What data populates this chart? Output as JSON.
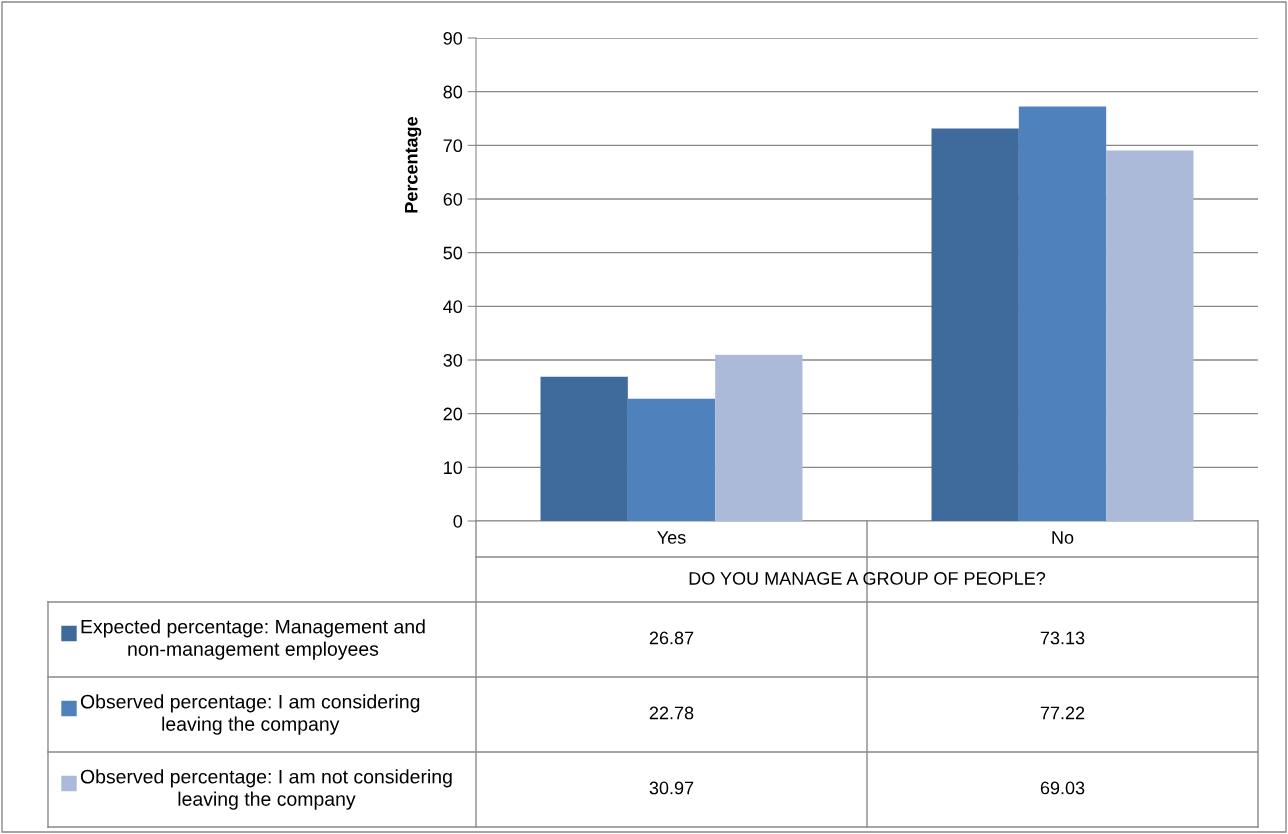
{
  "chart_data": {
    "type": "bar",
    "xlabel": "DO YOU MANAGE A GROUP OF PEOPLE?",
    "ylabel": "Percentage",
    "categories": [
      "Yes",
      "No"
    ],
    "series": [
      {
        "name": "Expected percentage: Management and non-management employees",
        "color": "#3f6a9c",
        "values": [
          26.87,
          73.13
        ]
      },
      {
        "name": "Observed percentage: I am considering leaving the company",
        "color": "#4f81bd",
        "values": [
          22.78,
          77.22
        ]
      },
      {
        "name": "Observed percentage: I am not considering leaving the company",
        "color": "#aabad8",
        "values": [
          30.97,
          69.03
        ]
      }
    ],
    "ylim": [
      0,
      90
    ],
    "yticks": [
      0,
      10,
      20,
      30,
      40,
      50,
      60,
      70,
      80,
      90
    ],
    "grid": "y",
    "legend": "bottom",
    "data_labels": true
  }
}
